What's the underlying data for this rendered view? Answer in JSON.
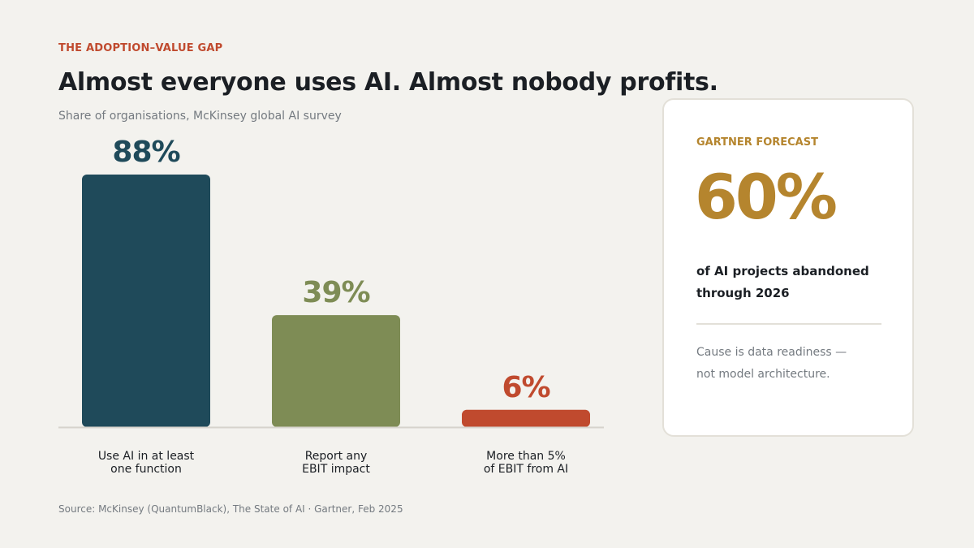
{
  "header": {
    "kicker": "THE ADOPTION–VALUE GAP",
    "title": "Almost everyone uses AI. Almost nobody profits.",
    "subtitle": "Share of organisations, McKinsey global AI survey"
  },
  "chart_data": {
    "type": "bar",
    "categories": [
      [
        "Use AI in at least",
        "one function"
      ],
      [
        "Report any",
        "EBIT impact"
      ],
      [
        "More than 5%",
        "of EBIT from AI"
      ]
    ],
    "values": [
      88,
      39,
      6
    ],
    "value_labels": [
      "88%",
      "39%",
      "6%"
    ],
    "colors": [
      "#1f4a5a",
      "#7e8c55",
      "#c04a2e"
    ],
    "ylim": [
      0,
      88
    ],
    "grid": false,
    "legend": "none"
  },
  "card": {
    "kicker": "GARTNER FORECAST",
    "value": "60%",
    "description": "of AI projects abandoned through 2026",
    "note_line1": "Cause is data readiness —",
    "note_line2": "not model architecture."
  },
  "footer": {
    "source": "Source: McKinsey (QuantumBlack), The State of AI  ·  Gartner, Feb 2025"
  }
}
